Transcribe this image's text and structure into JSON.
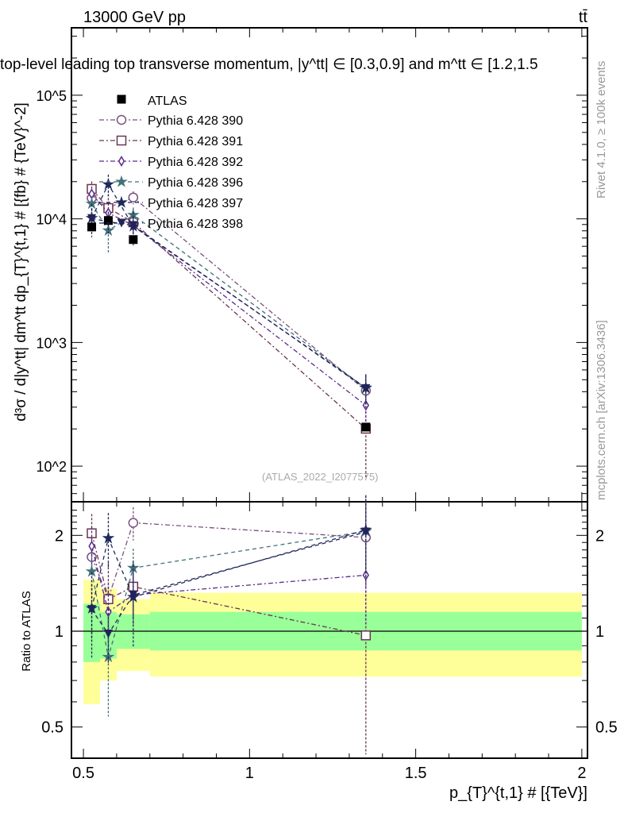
{
  "chart_data": {
    "type": "scatter",
    "header_left": "13000 GeV pp",
    "header_right": "tt̄",
    "title": "top-level leading top transverse momentum, |y^tt| ∈ [0.3,0.9] and m^tt ∈ [1.2,1.5",
    "ylabel": "d³σ / d|y^tt| dm^tt dp_{T}^{t,1} # [{fb} # {TeV}^-2]",
    "xlabel": "p_{T}^{t,1} # [{TeV}]",
    "ratio_ylabel": "Ratio to ATLAS",
    "side_label_top": "Rivet 4.1.0, ≥ 100k events",
    "side_label_bottom": "mcplots.cern.ch [arXiv:1306.3436]",
    "analysis_tag": "(ATLAS_2022_I2077575)",
    "xlim": [
      0.464,
      2.017
    ],
    "ylim": [
      51.5,
      351000
    ],
    "ratio_ylim": [
      0.399,
      2.55
    ],
    "x_ticks": [
      "0.5",
      "1",
      "1.5",
      "2"
    ],
    "y_ticks": [
      "10^2",
      "10^3",
      "10^4",
      "10^5"
    ],
    "ratio_ticks": [
      "0.5",
      "1",
      "2"
    ],
    "bin_edges": [
      0.5,
      0.55,
      0.6,
      0.7,
      2.0
    ],
    "x": [
      0.525,
      0.575,
      0.65,
      1.35
    ],
    "data": {
      "name": "ATLAS",
      "values": [
        8600,
        9700,
        6800,
        207
      ],
      "band_total": [
        [
          0.59,
          1.45
        ],
        [
          0.7,
          1.36
        ],
        [
          0.75,
          1.26
        ],
        [
          0.72,
          1.32
        ]
      ],
      "band_stat": [
        [
          0.8,
          1.22
        ],
        [
          0.82,
          1.15
        ],
        [
          0.88,
          1.13
        ],
        [
          0.87,
          1.15
        ]
      ]
    },
    "series": [
      {
        "name": "Pythia 6.428 390",
        "color": "#7a4f7e",
        "marker": "circle",
        "ratio": [
          1.71,
          1.27,
          2.19,
          1.97
        ],
        "err": [
          0.12,
          0.12,
          0.12,
          0.3
        ]
      },
      {
        "name": "Pythia 6.428 391",
        "color": "#6b3550",
        "marker": "square",
        "ratio": [
          2.03,
          1.26,
          1.38,
          0.97
        ],
        "err": [
          0.15,
          0.3,
          0.15,
          0.6
        ]
      },
      {
        "name": "Pythia 6.428 392",
        "color": "#5a2a8a",
        "marker": "diamond",
        "ratio": [
          1.85,
          1.15,
          1.3,
          1.5
        ],
        "err": [
          0.15,
          0.2,
          0.15,
          0.3
        ]
      },
      {
        "name": "Pythia 6.428 396",
        "color": "#44707a",
        "marker": "star-open",
        "ratio": [
          1.54,
          0.83,
          1.58,
          2.06
        ],
        "err": [
          0.15,
          0.35,
          0.15,
          0.3
        ]
      },
      {
        "name": "Pythia 6.428 397",
        "color": "#1e2a5a",
        "marker": "star",
        "ratio": [
          1.18,
          1.96,
          1.28,
          2.08
        ],
        "err": [
          0.3,
          0.2,
          0.3,
          0.25
        ]
      },
      {
        "name": "Pythia 6.428 398",
        "color": "#23235a",
        "marker": "triangle",
        "ratio": [
          1.17,
          0.98,
          1.3,
          2.05
        ],
        "err": [
          0.2,
          0.2,
          0.2,
          0.3
        ]
      }
    ]
  }
}
